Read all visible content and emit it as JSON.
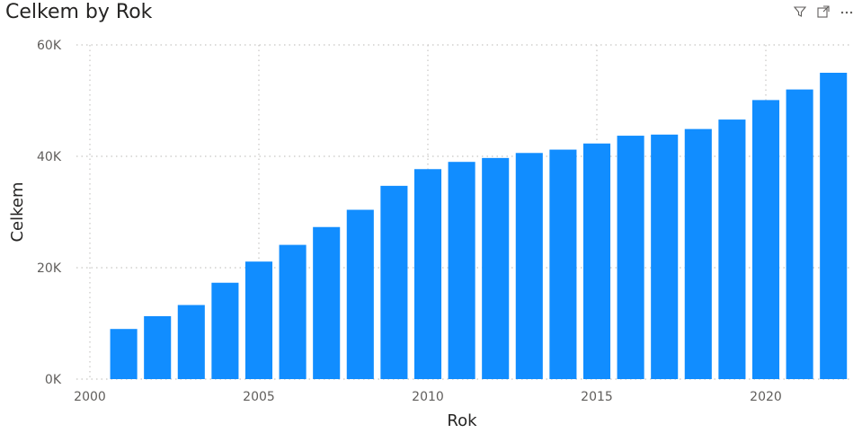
{
  "header": {
    "title": "Celkem by Rok",
    "icons": [
      "filter-icon",
      "focus-mode-icon",
      "more-options-icon"
    ]
  },
  "colors": {
    "bar": "#118DFF",
    "grid": "#c8c6c4",
    "tick": "#605e5c"
  },
  "chart_data": {
    "type": "bar",
    "title": "Celkem by Rok",
    "xlabel": "Rok",
    "ylabel": "Celkem",
    "x": [
      2001,
      2002,
      2003,
      2004,
      2005,
      2006,
      2007,
      2008,
      2009,
      2010,
      2011,
      2012,
      2013,
      2014,
      2015,
      2016,
      2017,
      2018,
      2019,
      2020,
      2021,
      2022
    ],
    "values": [
      9000,
      11300,
      13300,
      17300,
      21100,
      24100,
      27300,
      30400,
      34700,
      37700,
      39000,
      39700,
      40600,
      41200,
      42300,
      43700,
      43900,
      44900,
      46600,
      50100,
      52000,
      55000
    ],
    "ylim": [
      0,
      60000
    ],
    "xlim": [
      2000,
      2022.5
    ],
    "yticks": [
      0,
      20000,
      40000,
      60000
    ],
    "ytick_labels": [
      "0K",
      "20K",
      "40K",
      "60K"
    ],
    "xticks": [
      2000,
      2005,
      2010,
      2015,
      2020
    ],
    "xtick_labels": [
      "2000",
      "2005",
      "2010",
      "2015",
      "2020"
    ],
    "grid": true
  }
}
